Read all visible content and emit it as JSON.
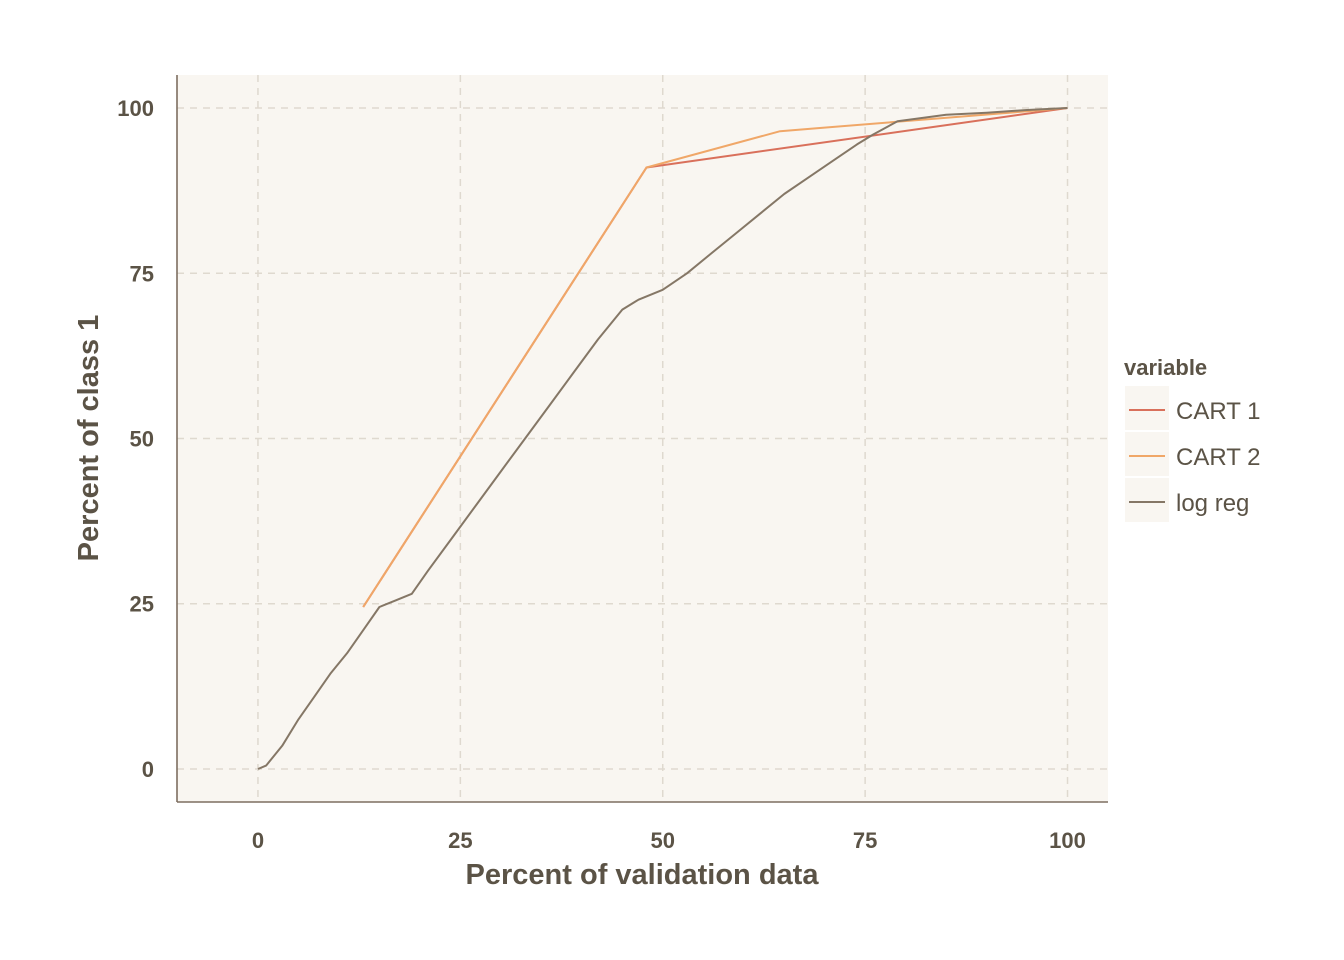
{
  "chart_data": {
    "type": "line",
    "title": "",
    "xlabel": "Percent of validation data",
    "ylabel": "Percent of class 1",
    "xlim": [
      -10,
      105
    ],
    "ylim": [
      -5,
      105
    ],
    "x_ticks": [
      0,
      25,
      50,
      75,
      100
    ],
    "y_ticks": [
      0,
      25,
      50,
      75,
      100
    ],
    "x_tick_labels": [
      "0",
      "25",
      "50",
      "75",
      "100"
    ],
    "y_tick_labels": [
      "0",
      "25",
      "50",
      "75",
      "100"
    ],
    "grid": true,
    "legend": {
      "title": "variable",
      "position": "right"
    },
    "series": [
      {
        "name": "CART 1",
        "color": "#d9705b",
        "x": [
          13,
          48,
          100
        ],
        "y": [
          24.5,
          91,
          100
        ]
      },
      {
        "name": "CART 2",
        "color": "#f0a768",
        "x": [
          13,
          48,
          64.5,
          100
        ],
        "y": [
          24.5,
          91,
          96.5,
          100
        ]
      },
      {
        "name": "log reg",
        "color": "#857766",
        "x": [
          0,
          1,
          3,
          5,
          7,
          9,
          11,
          13,
          15,
          17,
          19,
          21,
          24,
          27,
          30,
          33,
          36,
          39,
          42,
          45,
          47,
          50,
          53,
          56,
          59,
          62,
          65,
          68,
          71,
          74,
          76,
          79,
          82,
          85,
          90,
          95,
          100
        ],
        "y": [
          0,
          0.5,
          3.5,
          7.5,
          11,
          14.5,
          17.5,
          21,
          24.5,
          25.5,
          26.5,
          30,
          35,
          40,
          45,
          50,
          55,
          60,
          65,
          69.5,
          71,
          72.5,
          75,
          78,
          81,
          84,
          87,
          89.5,
          92,
          94.5,
          96,
          98,
          98.5,
          99,
          99.3,
          99.7,
          100
        ]
      }
    ]
  }
}
